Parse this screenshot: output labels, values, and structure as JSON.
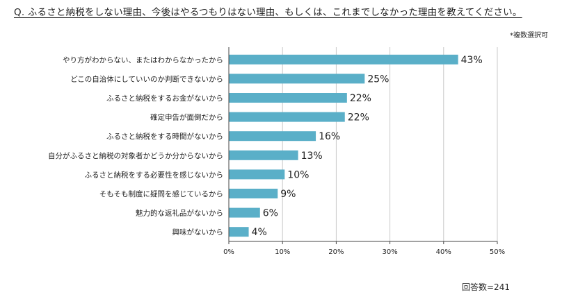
{
  "header": {
    "title": "Q. ふるさと納税をしない理由、今後はやるつもりはない理由、もしくは、これまでしなかった理由を教えてください。",
    "note": "*複数選択可"
  },
  "footer": {
    "respondents": "回答数=241"
  },
  "colors": {
    "bar": "#5aafc8",
    "grid": "#c8c8c8",
    "axis": "#444444"
  },
  "chart_data": {
    "type": "bar",
    "orientation": "horizontal",
    "categories": [
      "やり方がわからない、またはわからなかったから",
      "どこの自治体にしていいのか判断できないから",
      "ふるさと納税をするお金がないから",
      "確定申告が面倒だから",
      "ふるさと納税をする時間がないから",
      "自分がふるさと納税の対象者かどうか分からないから",
      "ふるさと納税をする必要性を感じないから",
      "そもそも制度に疑問を感じているから",
      "魅力的な返礼品がないから",
      "興味がないから"
    ],
    "values": [
      42.7,
      25.3,
      22.0,
      21.6,
      16.2,
      12.9,
      10.4,
      9.1,
      5.8,
      3.7
    ],
    "value_labels": [
      "43%",
      "25%",
      "22%",
      "22%",
      "16%",
      "13%",
      "10%",
      "9%",
      "6%",
      "4%"
    ],
    "xlim": [
      0,
      50
    ],
    "xticks": [
      0,
      10,
      20,
      30,
      40,
      50
    ],
    "xtick_labels": [
      "0%",
      "10%",
      "20%",
      "30%",
      "40%",
      "50%"
    ],
    "grid": true
  }
}
